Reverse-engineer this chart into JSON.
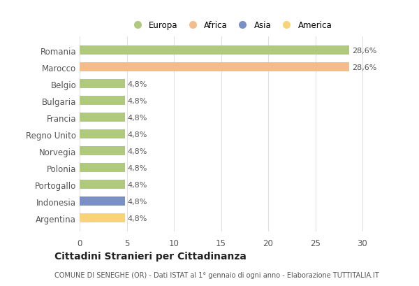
{
  "categories": [
    "Romania",
    "Marocco",
    "Belgio",
    "Bulgaria",
    "Francia",
    "Regno Unito",
    "Norvegia",
    "Polonia",
    "Portogallo",
    "Indonesia",
    "Argentina"
  ],
  "values": [
    28.6,
    28.6,
    4.8,
    4.8,
    4.8,
    4.8,
    4.8,
    4.8,
    4.8,
    4.8,
    4.8
  ],
  "labels": [
    "28,6%",
    "28,6%",
    "4,8%",
    "4,8%",
    "4,8%",
    "4,8%",
    "4,8%",
    "4,8%",
    "4,8%",
    "4,8%",
    "4,8%"
  ],
  "colors": [
    "#afc97e",
    "#f2bc8d",
    "#afc97e",
    "#afc97e",
    "#afc97e",
    "#afc97e",
    "#afc97e",
    "#afc97e",
    "#afc97e",
    "#7b90c2",
    "#f7d47a"
  ],
  "legend_labels": [
    "Europa",
    "Africa",
    "Asia",
    "America"
  ],
  "legend_colors": [
    "#afc97e",
    "#f2bc8d",
    "#7b90c2",
    "#f7d47a"
  ],
  "xlim": [
    0,
    32
  ],
  "xticks": [
    0,
    5,
    10,
    15,
    20,
    25,
    30
  ],
  "title": "Cittadini Stranieri per Cittadinanza",
  "subtitle": "COMUNE DI SENEGHE (OR) - Dati ISTAT al 1° gennaio di ogni anno - Elaborazione TUTTITALIA.IT",
  "background_color": "#ffffff",
  "grid_color": "#e0e0e0",
  "bar_height": 0.55
}
